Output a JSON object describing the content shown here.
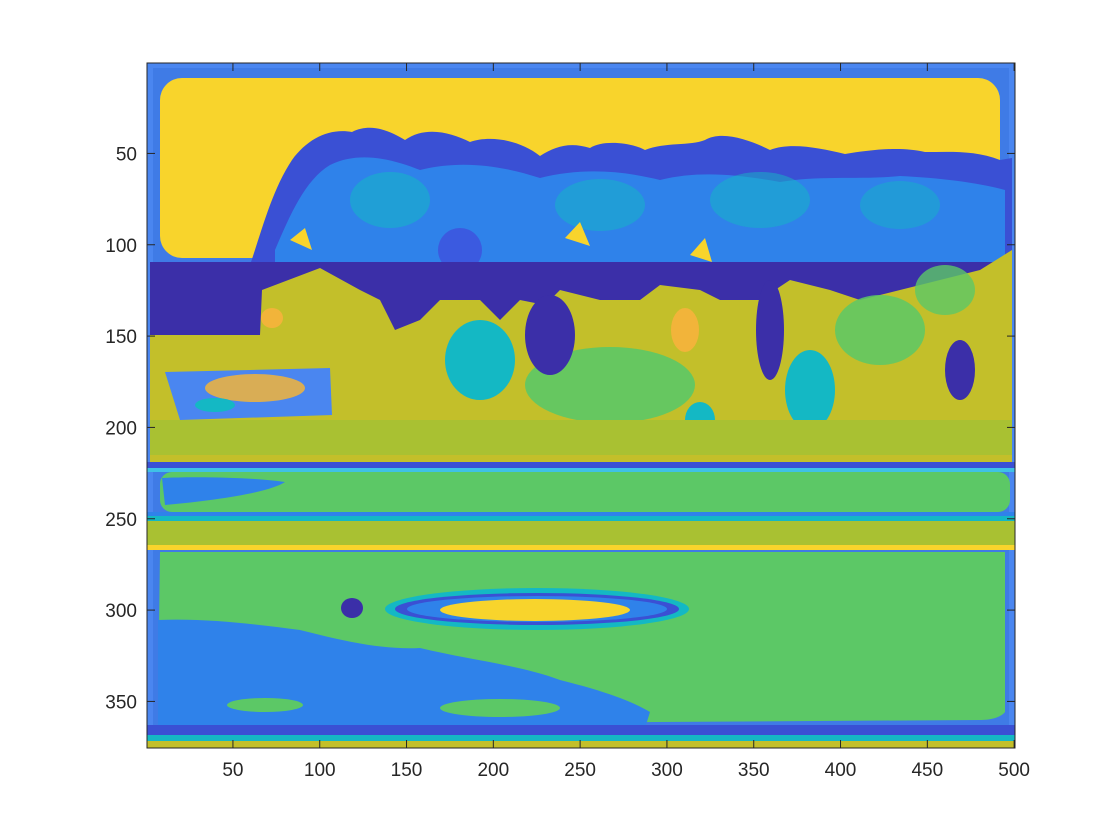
{
  "chart_data": {
    "type": "heatmap",
    "title": "",
    "xlabel": "",
    "ylabel": "",
    "xlim": [
      0.5,
      500.5
    ],
    "ylim": [
      0.5,
      375.5
    ],
    "y_direction": "reversed",
    "grid": false,
    "legend": "none",
    "colormap": "parula",
    "x_ticks": [
      50,
      100,
      150,
      200,
      250,
      300,
      350,
      400,
      450,
      500
    ],
    "y_ticks": [
      50,
      100,
      150,
      200,
      250,
      300,
      350
    ],
    "regions": [
      {
        "label": "frame",
        "color": "#4a86f0"
      },
      {
        "label": "sky",
        "color": "#f8d42c"
      },
      {
        "label": "tree-canopy",
        "color": "#3a50d4"
      },
      {
        "label": "dark-foliage",
        "color": "#3b2fa8"
      },
      {
        "label": "midground-foliage",
        "color": "#c3bf2a"
      },
      {
        "label": "teal-foliage",
        "color": "#14b8c4"
      },
      {
        "label": "field",
        "color": "#5cc866"
      },
      {
        "label": "field-shadow",
        "color": "#2f82ea"
      },
      {
        "label": "center-spot",
        "color": "#f8d42c"
      }
    ]
  }
}
